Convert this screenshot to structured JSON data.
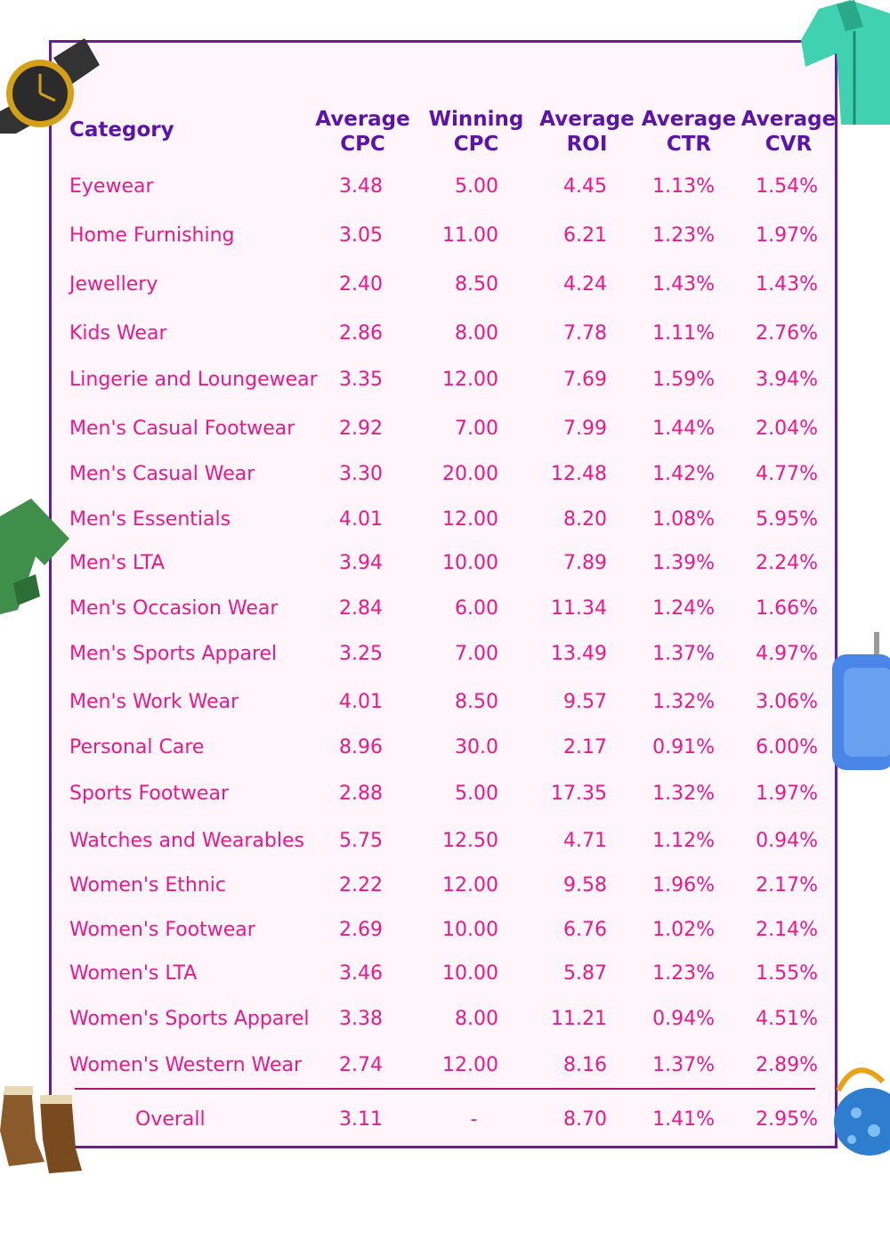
{
  "colors": {
    "border": "#6a1b9a",
    "header_text": "#5b13a8",
    "body_text": "#e8198b",
    "panel_bg": "#fff5fa",
    "divider": "#b0157a"
  },
  "icons": [
    "wristwatch-icon",
    "shirt-icon",
    "shorts-icon",
    "suitcase-icon",
    "boots-icon",
    "handbag-icon"
  ],
  "chart_data": {
    "type": "table",
    "columns": [
      "Category",
      "Average\nCPC",
      "Winning\nCPC",
      "Average\nROI",
      "Average\nCTR",
      "Average\nCVR"
    ],
    "rows": [
      [
        "Eyewear",
        "3.48",
        "5.00",
        "4.45",
        "1.13%",
        "1.54%"
      ],
      [
        "Home Furnishing",
        "3.05",
        "11.00",
        "6.21",
        "1.23%",
        "1.97%"
      ],
      [
        "Jewellery",
        "2.40",
        "8.50",
        "4.24",
        "1.43%",
        "1.43%"
      ],
      [
        "Kids Wear",
        "2.86",
        "8.00",
        "7.78",
        "1.11%",
        "2.76%"
      ],
      [
        "Lingerie and Loungewear",
        "3.35",
        "12.00",
        "7.69",
        "1.59%",
        "3.94%"
      ],
      [
        "Men's Casual Footwear",
        "2.92",
        "7.00",
        "7.99",
        "1.44%",
        "2.04%"
      ],
      [
        "Men's Casual Wear",
        "3.30",
        "20.00",
        "12.48",
        "1.42%",
        "4.77%"
      ],
      [
        "Men's Essentials",
        "4.01",
        "12.00",
        "8.20",
        "1.08%",
        "5.95%"
      ],
      [
        "Men's LTA",
        "3.94",
        "10.00",
        "7.89",
        "1.39%",
        "2.24%"
      ],
      [
        "Men's Occasion Wear",
        "2.84",
        "6.00",
        "11.34",
        "1.24%",
        "1.66%"
      ],
      [
        "Men's Sports Apparel",
        "3.25",
        "7.00",
        "13.49",
        "1.37%",
        "4.97%"
      ],
      [
        "Men's Work Wear",
        "4.01",
        "8.50",
        "9.57",
        "1.32%",
        "3.06%"
      ],
      [
        "Personal Care",
        "8.96",
        "30.0",
        "2.17",
        "0.91%",
        "6.00%"
      ],
      [
        "Sports Footwear",
        "2.88",
        "5.00",
        "17.35",
        "1.32%",
        "1.97%"
      ],
      [
        "Watches and Wearables",
        "5.75",
        "12.50",
        "4.71",
        "1.12%",
        "0.94%"
      ],
      [
        "Women's Ethnic",
        "2.22",
        "12.00",
        "9.58",
        "1.96%",
        "2.17%"
      ],
      [
        "Women's Footwear",
        "2.69",
        "10.00",
        "6.76",
        "1.02%",
        "2.14%"
      ],
      [
        "Women's LTA",
        "3.46",
        "10.00",
        "5.87",
        "1.23%",
        "1.55%"
      ],
      [
        "Women's Sports Apparel",
        "3.38",
        "8.00",
        "11.21",
        "0.94%",
        "4.51%"
      ],
      [
        "Women's Western Wear",
        "2.74",
        "12.00",
        "8.16",
        "1.37%",
        "2.89%"
      ]
    ],
    "overall": [
      "Overall",
      "3.11",
      "-",
      "8.70",
      "1.41%",
      "2.95%"
    ]
  }
}
